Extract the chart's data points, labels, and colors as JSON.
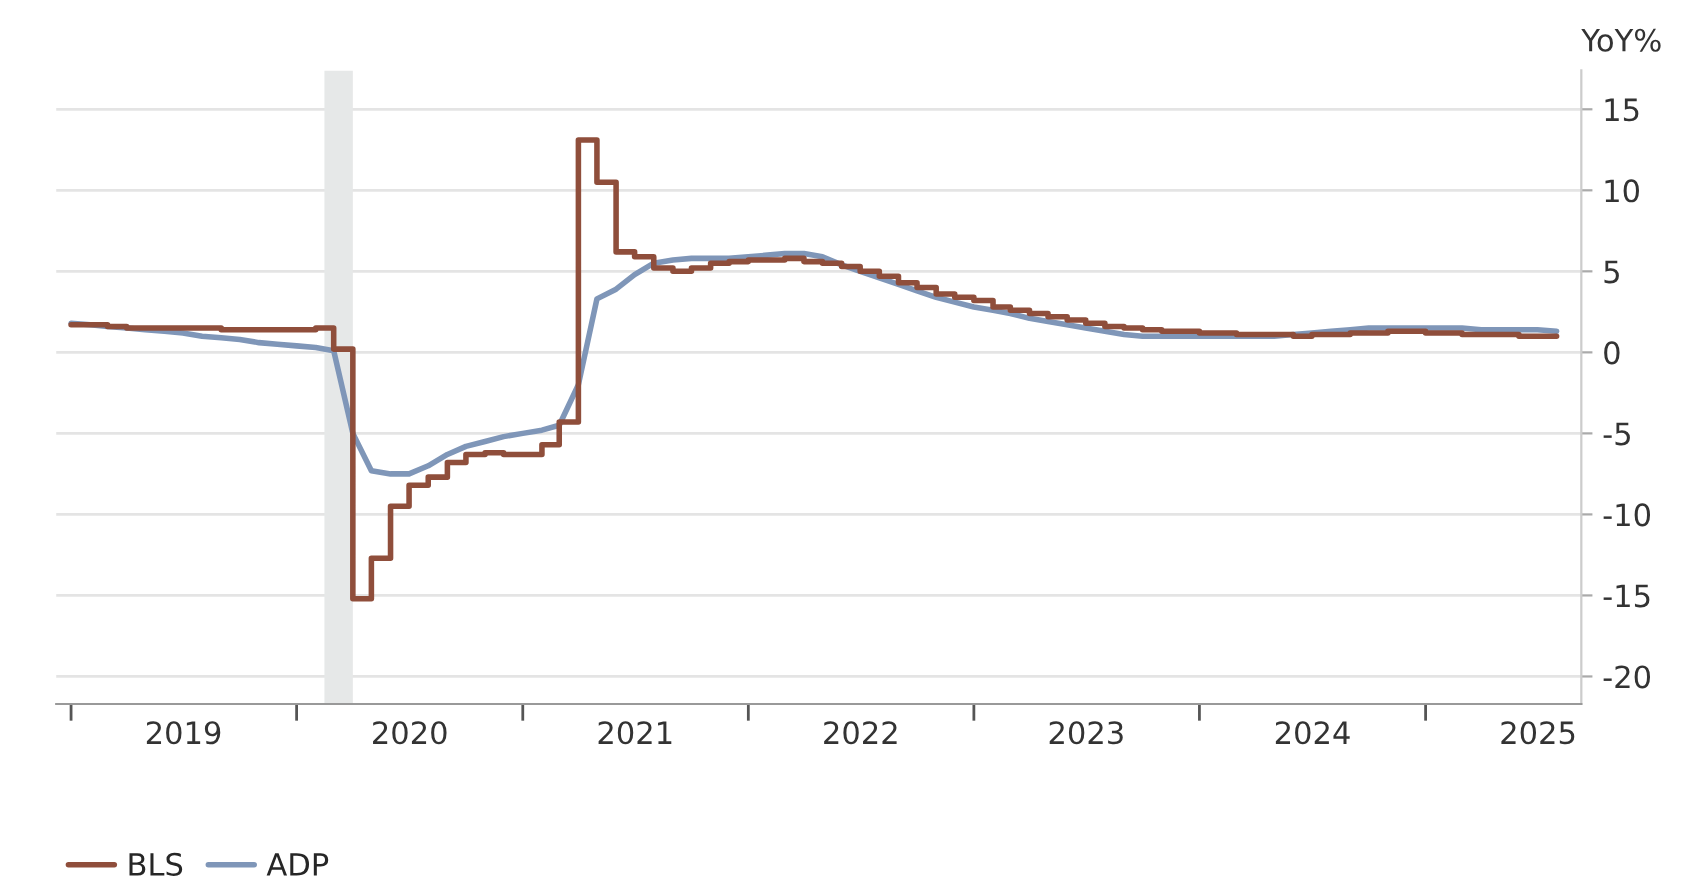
{
  "chart_data": {
    "type": "line",
    "ylabel": "YoY%",
    "x": [
      "2019-01",
      "2019-02",
      "2019-03",
      "2019-04",
      "2019-05",
      "2019-06",
      "2019-07",
      "2019-08",
      "2019-09",
      "2019-10",
      "2019-11",
      "2019-12",
      "2020-01",
      "2020-02",
      "2020-03",
      "2020-04",
      "2020-05",
      "2020-06",
      "2020-07",
      "2020-08",
      "2020-09",
      "2020-10",
      "2020-11",
      "2020-12",
      "2021-01",
      "2021-02",
      "2021-03",
      "2021-04",
      "2021-05",
      "2021-06",
      "2021-07",
      "2021-08",
      "2021-09",
      "2021-10",
      "2021-11",
      "2021-12",
      "2022-01",
      "2022-02",
      "2022-03",
      "2022-04",
      "2022-05",
      "2022-06",
      "2022-07",
      "2022-08",
      "2022-09",
      "2022-10",
      "2022-11",
      "2022-12",
      "2023-01",
      "2023-02",
      "2023-03",
      "2023-04",
      "2023-05",
      "2023-06",
      "2023-07",
      "2023-08",
      "2023-09",
      "2023-10",
      "2023-11",
      "2023-12",
      "2024-01",
      "2024-02",
      "2024-03",
      "2024-04",
      "2024-05",
      "2024-06",
      "2024-07",
      "2024-08",
      "2024-09",
      "2024-10",
      "2024-11",
      "2024-12",
      "2025-01",
      "2025-02",
      "2025-03",
      "2025-04",
      "2025-05",
      "2025-06",
      "2025-07",
      "2025-08"
    ],
    "series": [
      {
        "name": "BLS",
        "type": "step",
        "color": "#8f4e3b",
        "values": [
          1.7,
          1.7,
          1.6,
          1.5,
          1.5,
          1.5,
          1.5,
          1.5,
          1.4,
          1.4,
          1.4,
          1.4,
          1.4,
          1.5,
          0.2,
          -15.2,
          -12.7,
          -9.5,
          -8.2,
          -7.7,
          -6.8,
          -6.3,
          -6.2,
          -6.3,
          -6.3,
          -5.7,
          -4.3,
          13.1,
          10.5,
          6.2,
          5.9,
          5.2,
          5.0,
          5.2,
          5.5,
          5.6,
          5.7,
          5.7,
          5.8,
          5.6,
          5.5,
          5.3,
          5.0,
          4.7,
          4.3,
          4.0,
          3.6,
          3.4,
          3.2,
          2.8,
          2.6,
          2.4,
          2.2,
          2.0,
          1.8,
          1.6,
          1.5,
          1.4,
          1.3,
          1.3,
          1.2,
          1.2,
          1.1,
          1.1,
          1.1,
          1.0,
          1.1,
          1.1,
          1.2,
          1.2,
          1.3,
          1.3,
          1.2,
          1.2,
          1.1,
          1.1,
          1.1,
          1.0,
          1.0,
          1.0
        ]
      },
      {
        "name": "ADP",
        "color": "#7f96b8",
        "values": [
          1.8,
          1.7,
          1.6,
          1.5,
          1.4,
          1.3,
          1.2,
          1.0,
          0.9,
          0.8,
          0.6,
          0.5,
          0.4,
          0.3,
          0.1,
          -5.0,
          -7.3,
          -7.5,
          -7.5,
          -7.0,
          -6.3,
          -5.8,
          -5.5,
          -5.2,
          -5.0,
          -4.8,
          -4.5,
          -2.0,
          3.3,
          3.9,
          4.8,
          5.5,
          5.7,
          5.8,
          5.8,
          5.8,
          5.9,
          6.0,
          6.1,
          6.1,
          5.9,
          5.4,
          5.0,
          4.6,
          4.2,
          3.8,
          3.4,
          3.1,
          2.8,
          2.6,
          2.4,
          2.1,
          1.9,
          1.7,
          1.5,
          1.3,
          1.1,
          1.0,
          1.0,
          1.0,
          1.0,
          1.0,
          1.0,
          1.0,
          1.0,
          1.1,
          1.2,
          1.3,
          1.4,
          1.5,
          1.5,
          1.5,
          1.5,
          1.5,
          1.5,
          1.4,
          1.4,
          1.4,
          1.4,
          1.3
        ]
      }
    ],
    "bands": [
      {
        "axis": "x",
        "from": "2020-02-15",
        "to": "2020-04-01",
        "color": "#e6e8e8"
      }
    ],
    "xlim": [
      "2018-12-08",
      "2025-09-10"
    ],
    "xticks": [
      {
        "value": "2019-01-01",
        "label": null
      },
      {
        "value": "2019-07-02",
        "label": "2019"
      },
      {
        "value": "2020-01-01",
        "label": null
      },
      {
        "value": "2020-07-02",
        "label": "2020"
      },
      {
        "value": "2021-01-01",
        "label": null
      },
      {
        "value": "2021-07-02",
        "label": "2021"
      },
      {
        "value": "2022-01-01",
        "label": null
      },
      {
        "value": "2022-07-02",
        "label": "2022"
      },
      {
        "value": "2023-01-01",
        "label": null
      },
      {
        "value": "2023-07-02",
        "label": "2023"
      },
      {
        "value": "2024-01-01",
        "label": null
      },
      {
        "value": "2024-07-02",
        "label": "2024"
      },
      {
        "value": "2025-01-01",
        "label": null
      },
      {
        "value": "2025-07-02",
        "label": "2025"
      }
    ],
    "ylim": [
      -21.7,
      17.4
    ],
    "yticks": [
      -20,
      -15,
      -10,
      -5,
      0,
      5,
      10,
      15
    ],
    "grid": "y",
    "legend": "bottom left"
  }
}
